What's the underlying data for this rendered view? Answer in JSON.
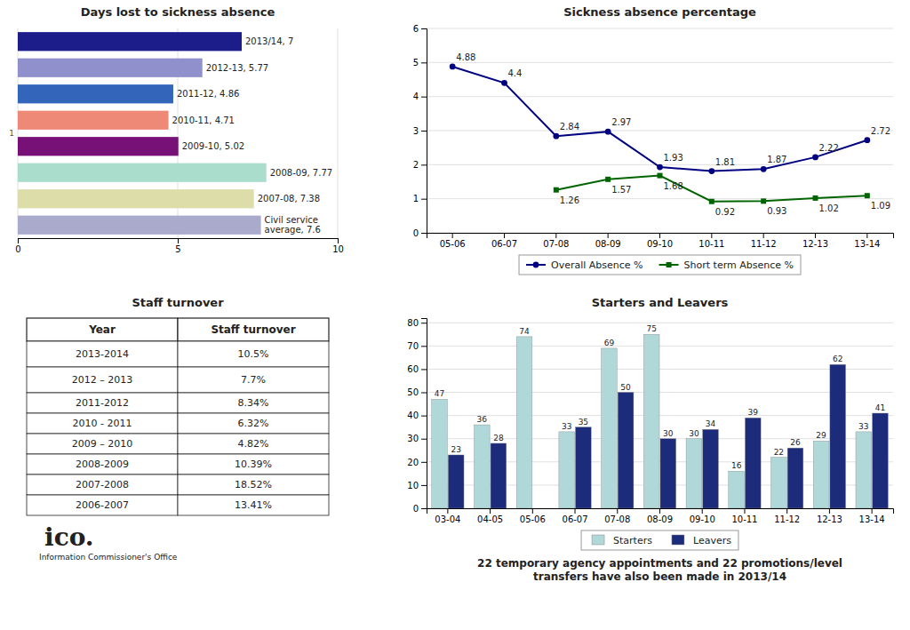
{
  "chart_data": [
    {
      "type": "bar",
      "orientation": "horizontal",
      "title": "Days lost to sickness absence",
      "categories": [
        "2013/14, 7",
        "2012-13, 5.77",
        "2011-12, 4.86",
        "2010-11, 4.71",
        "2009-10, 5.02",
        "2008-09, 7.77",
        "2007-08, 7.38",
        "Civil service\naverage, 7.6"
      ],
      "values": [
        7,
        5.77,
        4.86,
        4.71,
        5.02,
        7.77,
        7.38,
        7.6
      ],
      "colors": [
        "#1C1C8A",
        "#9090CC",
        "#3366BB",
        "#EE8877",
        "#771177",
        "#AADDCC",
        "#DDDDAA",
        "#AAAACC"
      ],
      "xlim": [
        0,
        10
      ],
      "xticks": [
        0,
        5,
        10
      ],
      "grid": true,
      "tick_labels": "x",
      "annotations": [
        "1"
      ]
    },
    {
      "type": "line",
      "title": "Sickness absence percentage",
      "categories": [
        "05-06",
        "06-07",
        "07-08",
        "08-09",
        "09-10",
        "10-11",
        "11-12",
        "12-13",
        "13-14"
      ],
      "series": [
        {
          "name": "Overall Absence %",
          "color": "#000080",
          "marker": "circle",
          "values": [
            4.88,
            4.4,
            2.84,
            2.97,
            1.93,
            1.81,
            1.87,
            2.22,
            2.72
          ]
        },
        {
          "name": "Short term Absence %",
          "color": "#006400",
          "marker": "square",
          "values": [
            null,
            null,
            1.26,
            1.57,
            1.68,
            0.92,
            0.93,
            1.02,
            1.09
          ]
        }
      ],
      "ylim": [
        0,
        6
      ],
      "yticks": [
        0,
        1,
        2,
        3,
        4,
        5,
        6
      ],
      "grid": true,
      "legend": "bottom",
      "data_labels": true
    },
    {
      "type": "table",
      "title": "Staff turnover",
      "columns": [
        "Year",
        "Staff turnover"
      ],
      "categories": [
        "2013-2014",
        "2012 – 2013",
        "2011-2012",
        "2010 - 2011",
        "2009 – 2010",
        "2008-2009",
        "2007-2008",
        "2006-2007"
      ],
      "values": [
        10.5,
        7.7,
        8.34,
        6.32,
        4.82,
        10.39,
        18.52,
        13.41
      ],
      "value_labels": [
        "10.5%",
        "7.7%",
        "8.34%",
        "6.32%",
        "4.82%",
        "10.39%",
        "18.52%",
        "13.41%"
      ],
      "annotations": [
        "ico.",
        "Information Commissioner's Office"
      ]
    },
    {
      "type": "bar",
      "title": "Starters and Leavers",
      "categories": [
        "03-04",
        "04-05",
        "05-06",
        "06-07",
        "07-08",
        "08-09",
        "09-10",
        "10-11",
        "11-12",
        "12-13",
        "13-14"
      ],
      "series": [
        {
          "name": "Starters",
          "color": "#B0D8D8",
          "values": [
            47,
            36,
            74,
            33,
            69,
            75,
            30,
            16,
            22,
            29,
            33
          ]
        },
        {
          "name": "Leavers",
          "color": "#1C2B7A",
          "values": [
            23,
            28,
            null,
            35,
            50,
            30,
            34,
            39,
            26,
            62,
            41
          ]
        }
      ],
      "ylim": [
        0,
        82
      ],
      "yticks": [
        0,
        10,
        20,
        30,
        40,
        50,
        60,
        70,
        80
      ],
      "grid": true,
      "legend": "bottom",
      "data_labels": true,
      "annotations": [
        "22 temporary agency appointments and 22 promotions/level\ntransfers have also been made in 2013/14"
      ]
    }
  ]
}
